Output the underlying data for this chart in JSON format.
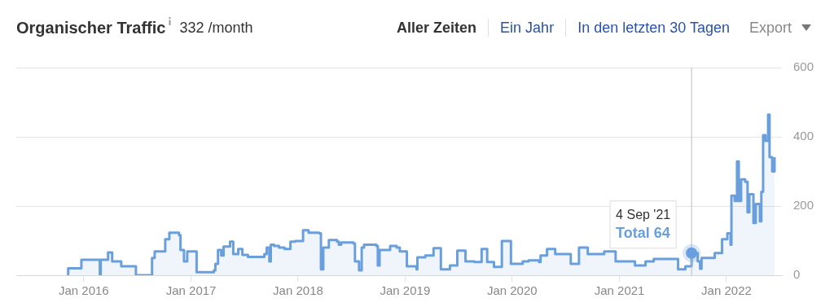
{
  "chart_data": {
    "type": "step",
    "title": "Organischer Traffic",
    "subtitle": "332 /month",
    "annotations": [
      "Aller Zeiten",
      "Ein Jahr",
      "In den letzten 30 Tagen",
      "Export",
      {
        "text": "4 Sep '21",
        "x": "2021-09-04",
        "y": 64
      },
      {
        "text": "Total 64",
        "x": "2021-09-04",
        "y": 64
      }
    ],
    "series": [
      {
        "color": "#6a9fde",
        "x": [
          "2015-11-07",
          "2015-11-09",
          "2015-12-24",
          "2016-02-25",
          "2016-02-28",
          "2016-03-24",
          "2016-04-07",
          "2016-05-08",
          "2016-06-27",
          "2016-08-21",
          "2016-08-30",
          "2016-10-05",
          "2016-10-19",
          "2016-11-21",
          "2016-11-26",
          "2016-12-08",
          "2016-12-19",
          "2017-01-20",
          "2017-03-20",
          "2017-03-25",
          "2017-04-03",
          "2017-04-14",
          "2017-04-22",
          "2017-05-14",
          "2017-05-25",
          "2017-06-11",
          "2017-06-25",
          "2017-07-14",
          "2017-09-08",
          "2017-09-16",
          "2017-09-25",
          "2017-09-30",
          "2017-10-11",
          "2017-10-28",
          "2017-11-16",
          "2017-12-06",
          "2017-12-22",
          "2018-01-18",
          "2018-02-06",
          "2018-03-14",
          "2018-03-20",
          "2018-03-28",
          "2018-04-16",
          "2018-05-14",
          "2018-05-20",
          "2018-05-28",
          "2018-07-09",
          "2018-07-14",
          "2018-07-28",
          "2018-08-06",
          "2018-08-14",
          "2018-09-25",
          "2018-09-30",
          "2018-10-06",
          "2018-11-02",
          "2018-11-11",
          "2018-12-03",
          "2018-12-14",
          "2019-01-07",
          "2019-02-09",
          "2019-02-12",
          "2019-03-11",
          "2019-04-08",
          "2019-05-03",
          "2019-06-03",
          "2019-06-28",
          "2019-07-26",
          "2019-08-25",
          "2019-09-19",
          "2019-10-08",
          "2019-10-31",
          "2019-11-27",
          "2019-12-28",
          "2020-02-06",
          "2020-02-26",
          "2020-04-02",
          "2020-04-07",
          "2020-04-29",
          "2020-05-27",
          "2020-07-19",
          "2020-08-16",
          "2020-09-15",
          "2020-11-10",
          "2020-12-19",
          "2021-02-23",
          "2021-03-31",
          "2021-04-28",
          "2021-06-22",
          "2021-07-20",
          "2021-08-14",
          "2021-09-04",
          "2021-09-25",
          "2021-10-03",
          "2021-10-08",
          "2021-11-22",
          "2021-12-17",
          "2022-01-04",
          "2022-01-15",
          "2022-01-18",
          "2022-01-29",
          "2022-02-06",
          "2022-02-12",
          "2022-02-20",
          "2022-03-06",
          "2022-03-14",
          "2022-03-20",
          "2022-04-03",
          "2022-04-11",
          "2022-04-25",
          "2022-04-30",
          "2022-05-06",
          "2022-05-14",
          "2022-05-23",
          "2022-05-28",
          "2022-06-06",
          "2022-06-14"
        ],
        "values": [
          0,
          20,
          45,
          0,
          45,
          66,
          40,
          26,
          0,
          50,
          69,
          104,
          123,
          116,
          73,
          40,
          69,
          9,
          14,
          33,
          73,
          57,
          83,
          97,
          61,
          76,
          59,
          53,
          61,
          80,
          40,
          88,
          85,
          80,
          76,
          97,
          99,
          130,
          123,
          121,
          17,
          80,
          102,
          97,
          88,
          95,
          92,
          40,
          14,
          80,
          88,
          85,
          28,
          73,
          73,
          85,
          80,
          69,
          26,
          17,
          52,
          57,
          78,
          17,
          28,
          71,
          40,
          38,
          76,
          38,
          24,
          99,
          33,
          40,
          43,
          38,
          57,
          76,
          61,
          33,
          80,
          61,
          69,
          40,
          28,
          40,
          47,
          47,
          17,
          26,
          64,
          40,
          19,
          50,
          64,
          104,
          121,
          88,
          230,
          215,
          329,
          215,
          277,
          270,
          182,
          234,
          151,
          206,
          156,
          241,
          405,
          388,
          464,
          341,
          300,
          341
        ]
      }
    ],
    "xlim": [
      "2015-05-16",
      "2022-07-09"
    ],
    "xticks": [
      {
        "value": "2016-01-01",
        "label": "Jan 2016"
      },
      {
        "value": "2017-01-01",
        "label": "Jan 2017"
      },
      {
        "value": "2018-01-01",
        "label": "Jan 2018"
      },
      {
        "value": "2019-01-01",
        "label": "Jan 2019"
      },
      {
        "value": "2020-01-01",
        "label": "Jan 2020"
      },
      {
        "value": "2021-01-01",
        "label": "Jan 2021"
      },
      {
        "value": "2022-01-01",
        "label": "Jan 2022"
      }
    ],
    "ylim": [
      0,
      600
    ],
    "yticks": [
      0,
      200,
      400,
      600
    ],
    "ref_lines": [
      {
        "axis": "x",
        "value": "2021-09-04",
        "color": "#bbbbbb"
      }
    ],
    "grid": "y",
    "legend": false,
    "marker": "none",
    "line_style": "solid"
  }
}
